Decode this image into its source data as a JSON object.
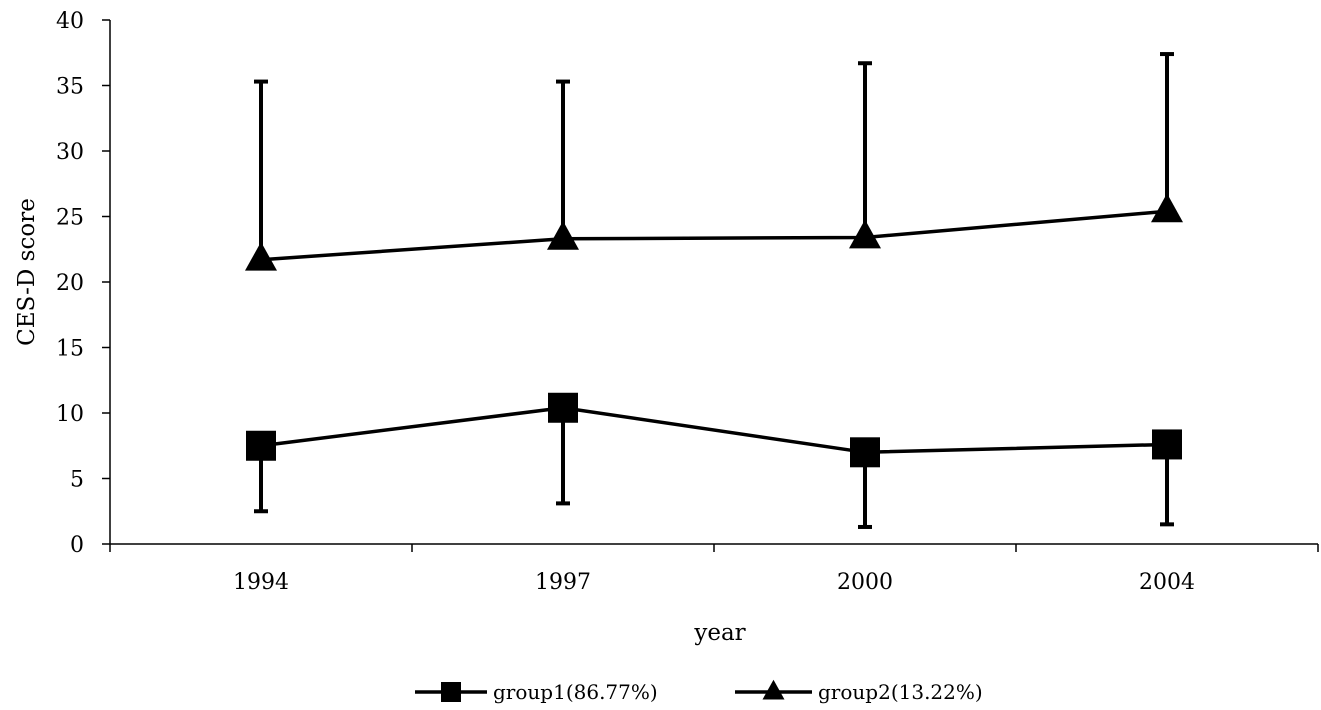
{
  "chart_data": {
    "type": "line",
    "title": "",
    "xlabel": "year",
    "ylabel": "CES-D score",
    "categories": [
      "1994",
      "1997",
      "2000",
      "2004"
    ],
    "ylim": [
      0,
      40
    ],
    "yticks": [
      0,
      5,
      10,
      15,
      20,
      25,
      30,
      35,
      40
    ],
    "grid": false,
    "legend_position": "bottom-center",
    "series": [
      {
        "name": "group1(86.77%)",
        "marker": "square",
        "color": "#000000",
        "values": [
          7.5,
          10.4,
          7.0,
          7.6
        ],
        "error_low": [
          2.5,
          3.1,
          1.3,
          1.5
        ],
        "error_high": [
          7.5,
          10.4,
          7.0,
          7.6
        ]
      },
      {
        "name": "group2(13.22%)",
        "marker": "triangle",
        "color": "#000000",
        "values": [
          21.7,
          23.3,
          23.4,
          25.4
        ],
        "error_low": [
          21.7,
          23.3,
          23.4,
          25.4
        ],
        "error_high": [
          35.3,
          35.3,
          36.7,
          37.4
        ]
      }
    ]
  }
}
